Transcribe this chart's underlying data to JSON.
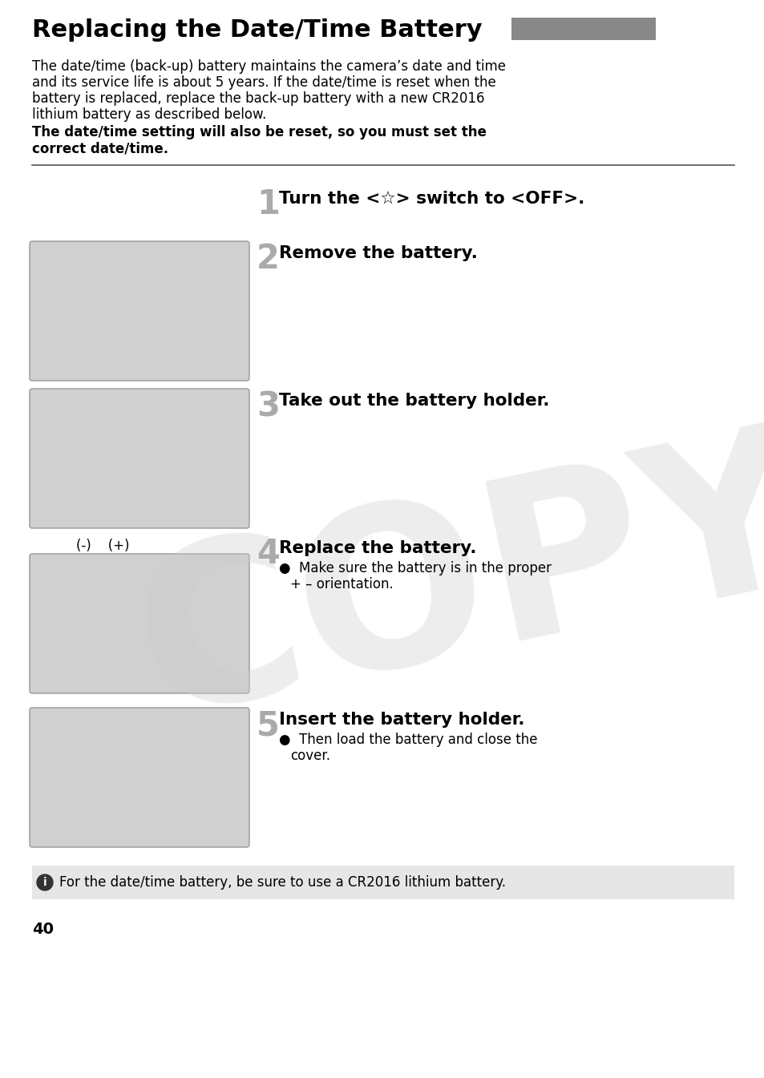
{
  "title": "Replacing the Date/Time Battery",
  "title_rect_color": "#888888",
  "bg_color": "#ffffff",
  "intro_text_lines": [
    "The date/time (back-up) battery maintains the camera’s date and time",
    "and its service life is about 5 years. If the date/time is reset when the",
    "battery is replaced, replace the back-up battery with a new CR2016",
    "lithium battery as described below."
  ],
  "bold_warning_lines": [
    "The date/time setting will also be reset, so you must set the",
    "correct date/time."
  ],
  "step1_text": "Turn the <",
  "step1_icon": "☆",
  "step1_text2": "> switch to <OFF>.",
  "step2_text": "Remove the battery.",
  "step3_text": "Take out the battery holder.",
  "step4_text": "Replace the battery.",
  "step4_label": "(-)    (+)",
  "step4_bullet1a": "●  Make sure the battery is in the proper",
  "step4_bullet1b": "    + – orientation.",
  "step5_text": "Insert the battery holder.",
  "step5_bullet1a": "●  Then load the battery and close the",
  "step5_bullet1b": "    cover.",
  "note_text": "For the date/time battery, be sure to use a CR2016 lithium battery.",
  "note_bg": "#e6e6e6",
  "page_number": "40",
  "watermark_text": "COPY",
  "watermark_color": "#cccccc",
  "separator_color": "#555555",
  "step_num_color": "#aaaaaa",
  "img_bg_color": "#d0d0d0",
  "img_border_color": "#999999"
}
